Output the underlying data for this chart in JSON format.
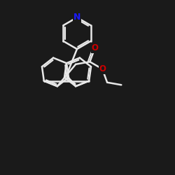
{
  "bg": "#1a1a1a",
  "bond_color": "#e8e8e8",
  "N_color": "#1a1aff",
  "O_color": "#cc0000",
  "lw": 1.8,
  "bl": 0.082,
  "figsize": [
    2.5,
    2.5
  ],
  "dpi": 100,
  "xlim": [
    0.0,
    1.0
  ],
  "ylim": [
    0.0,
    1.0
  ]
}
